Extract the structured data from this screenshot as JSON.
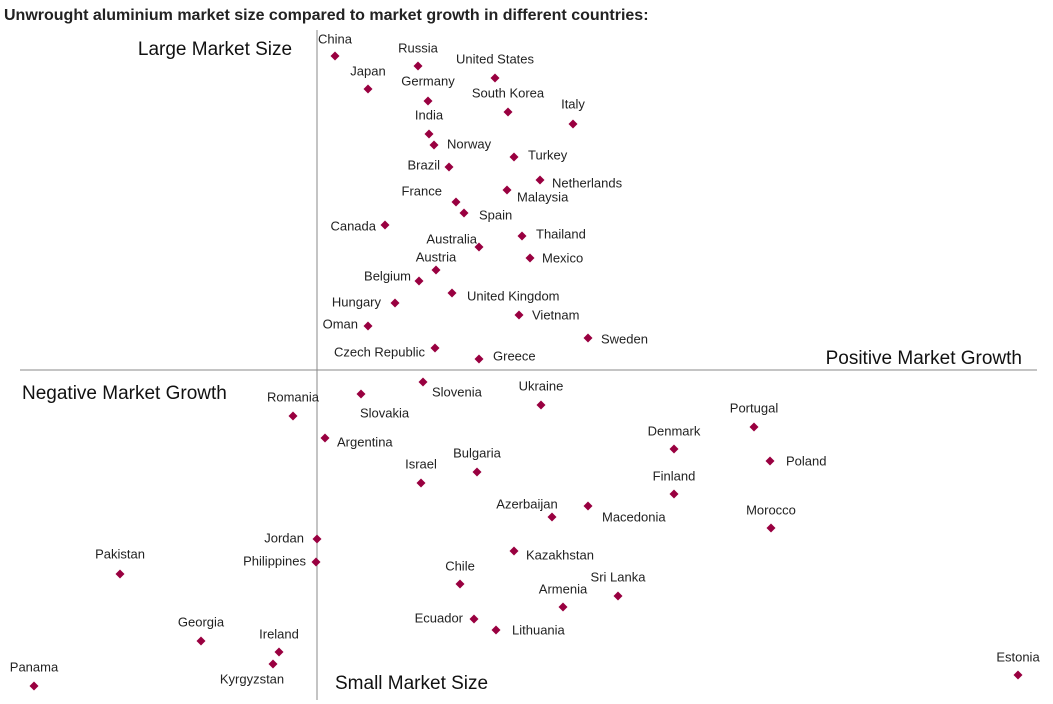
{
  "chart_data": {
    "type": "scatter",
    "title": "Unwrought aluminium market size compared to market growth in different countries:",
    "annotations": [
      "Large Market Size",
      "Positive Market Growth",
      "Negative Market Growth",
      "Small Market Size"
    ],
    "color": "#990040",
    "xlim": [
      -3,
      7.2
    ],
    "ylim": [
      -3.3,
      3.4
    ],
    "labels": [
      "China",
      "Russia",
      "United States",
      "Japan",
      "Germany",
      "South Korea",
      "Italy",
      "India",
      "Norway",
      "Turkey",
      "Brazil",
      "Netherlands",
      "Malaysia",
      "France",
      "Spain",
      "Canada",
      "Thailand",
      "Australia",
      "Mexico",
      "Austria",
      "Belgium",
      "United Kingdom",
      "Hungary",
      "Vietnam",
      "Oman",
      "Sweden",
      "Czech Republic",
      "Greece",
      "Slovenia",
      "Slovakia",
      "Ukraine",
      "Romania",
      "Portugal",
      "Argentina",
      "Denmark",
      "Poland",
      "Bulgaria",
      "Israel",
      "Finland",
      "Macedonia",
      "Azerbaijan",
      "Morocco",
      "Jordan",
      "Kazakhstan",
      "Philippines",
      "Pakistan",
      "Chile",
      "Sri Lanka",
      "Armenia",
      "Ecuador",
      "Lithuania",
      "Georgia",
      "Ireland",
      "Kyrgyzstan",
      "Estonia",
      "Panama"
    ],
    "x": [
      0.18,
      1.01,
      1.78,
      0.51,
      1.11,
      1.91,
      2.56,
      1.12,
      1.17,
      1.97,
      1.32,
      2.23,
      1.9,
      1.39,
      1.47,
      0.68,
      2.05,
      1.62,
      2.13,
      1.19,
      1.02,
      1.35,
      0.78,
      2.02,
      0.51,
      2.71,
      1.18,
      1.62,
      1.06,
      0.44,
      2.24,
      -0.24,
      4.37,
      0.08,
      3.57,
      4.53,
      1.6,
      1.04,
      3.57,
      2.71,
      2.35,
      4.54,
      0.0,
      1.97,
      -0.01,
      -1.97,
      1.43,
      3.01,
      2.46,
      1.57,
      1.79,
      -1.16,
      -0.38,
      -0.44,
      7.01,
      -2.83
    ],
    "y": [
      3.14,
      3.04,
      2.92,
      2.81,
      2.69,
      2.58,
      2.46,
      2.36,
      2.25,
      2.13,
      2.03,
      1.9,
      1.8,
      1.68,
      1.57,
      1.45,
      1.34,
      1.23,
      1.12,
      1.0,
      0.89,
      0.77,
      0.67,
      0.55,
      0.44,
      0.32,
      0.22,
      0.11,
      -0.12,
      -0.24,
      -0.35,
      -0.46,
      -0.57,
      -0.68,
      -0.79,
      -0.91,
      -1.02,
      -1.13,
      -1.24,
      -1.36,
      -1.47,
      -1.58,
      -1.69,
      -1.81,
      -1.92,
      -2.04,
      -2.14,
      -2.26,
      -2.37,
      -2.49,
      -2.6,
      -2.71,
      -2.82,
      -2.94,
      -3.05,
      -3.16
    ]
  }
}
